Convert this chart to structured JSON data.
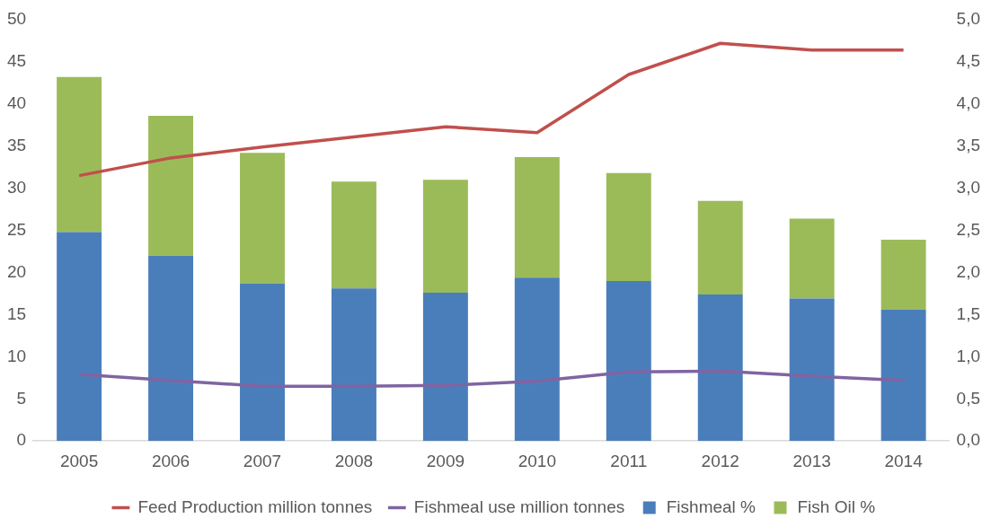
{
  "chart_data": {
    "type": "bar",
    "stacked": true,
    "categories": [
      "2005",
      "2006",
      "2007",
      "2008",
      "2009",
      "2010",
      "2011",
      "2012",
      "2013",
      "2014"
    ],
    "series": [
      {
        "name": "Fishmeal %",
        "color": "#4a7ebb",
        "values": [
          24.8,
          22.0,
          18.7,
          18.1,
          17.6,
          19.4,
          19.0,
          17.4,
          16.9,
          15.6
        ]
      },
      {
        "name": "Fish Oil %",
        "color": "#9bbb59",
        "values": [
          18.4,
          16.6,
          15.5,
          12.7,
          13.4,
          14.3,
          12.8,
          11.1,
          9.5,
          8.3
        ]
      },
      {
        "name": "Feed Production million tonnes",
        "type": "line",
        "axis": "y2",
        "color": "#c0504d",
        "values": [
          3.15,
          3.36,
          3.49,
          3.61,
          3.73,
          3.66,
          4.35,
          4.72,
          4.64,
          4.64
        ]
      },
      {
        "name": "Fishmeal use million tonnes",
        "type": "line",
        "axis": "y2",
        "color": "#8064a2",
        "values": [
          0.79,
          0.72,
          0.65,
          0.65,
          0.66,
          0.71,
          0.82,
          0.83,
          0.77,
          0.72
        ]
      }
    ],
    "ylim": [
      0,
      50
    ],
    "yticks": [
      0,
      5,
      10,
      15,
      20,
      25,
      30,
      35,
      40,
      45,
      50
    ],
    "y2lim": [
      0,
      5
    ],
    "y2ticks": [
      {
        "value": 0,
        "label": "0,0"
      },
      {
        "value": 0.5,
        "label": "0,5"
      },
      {
        "value": 1,
        "label": "1,0"
      },
      {
        "value": 1.5,
        "label": "1,5"
      },
      {
        "value": 2,
        "label": "2,0"
      },
      {
        "value": 2.5,
        "label": "2,5"
      },
      {
        "value": 3,
        "label": "3,0"
      },
      {
        "value": 3.5,
        "label": "3,5"
      },
      {
        "value": 4,
        "label": "4,0"
      },
      {
        "value": 4.5,
        "label": "4,5"
      },
      {
        "value": 5,
        "label": "5,0"
      }
    ],
    "grid": false,
    "legend": "bottom",
    "marker": "none",
    "line_style": "solid"
  }
}
